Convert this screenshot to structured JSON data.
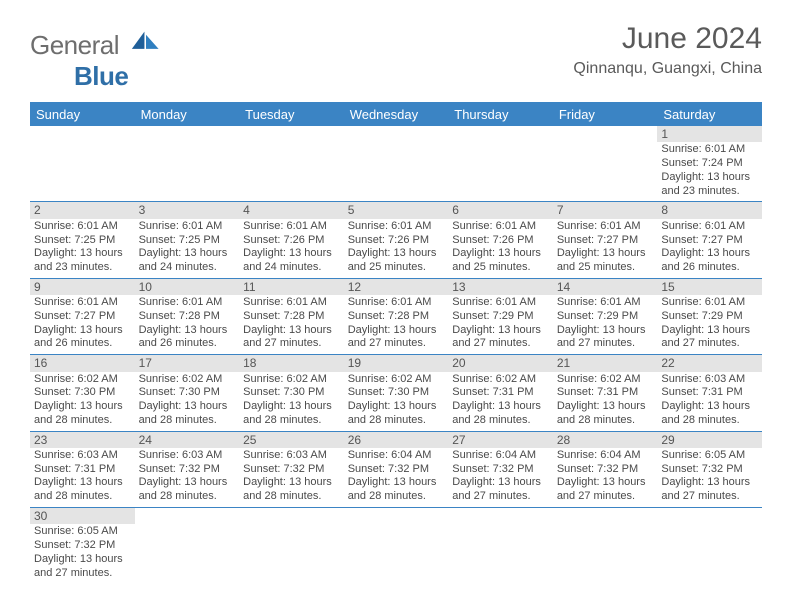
{
  "brand": {
    "word1": "General",
    "word2": "Blue"
  },
  "title": "June 2024",
  "location": "Qinnanqu, Guangxi, China",
  "colors": {
    "header_bg": "#3b84c4",
    "header_text": "#ffffff",
    "daynum_bg": "#e4e4e4",
    "border": "#3b84c4",
    "title_color": "#5a5a5a",
    "logo_gray": "#6e6e6e",
    "logo_blue": "#2f6fa7"
  },
  "weekdays": [
    "Sunday",
    "Monday",
    "Tuesday",
    "Wednesday",
    "Thursday",
    "Friday",
    "Saturday"
  ],
  "leading_blanks": 6,
  "days": [
    {
      "n": 1,
      "sr": "6:01 AM",
      "ss": "7:24 PM",
      "dl": "13 hours and 23 minutes."
    },
    {
      "n": 2,
      "sr": "6:01 AM",
      "ss": "7:25 PM",
      "dl": "13 hours and 23 minutes."
    },
    {
      "n": 3,
      "sr": "6:01 AM",
      "ss": "7:25 PM",
      "dl": "13 hours and 24 minutes."
    },
    {
      "n": 4,
      "sr": "6:01 AM",
      "ss": "7:26 PM",
      "dl": "13 hours and 24 minutes."
    },
    {
      "n": 5,
      "sr": "6:01 AM",
      "ss": "7:26 PM",
      "dl": "13 hours and 25 minutes."
    },
    {
      "n": 6,
      "sr": "6:01 AM",
      "ss": "7:26 PM",
      "dl": "13 hours and 25 minutes."
    },
    {
      "n": 7,
      "sr": "6:01 AM",
      "ss": "7:27 PM",
      "dl": "13 hours and 25 minutes."
    },
    {
      "n": 8,
      "sr": "6:01 AM",
      "ss": "7:27 PM",
      "dl": "13 hours and 26 minutes."
    },
    {
      "n": 9,
      "sr": "6:01 AM",
      "ss": "7:27 PM",
      "dl": "13 hours and 26 minutes."
    },
    {
      "n": 10,
      "sr": "6:01 AM",
      "ss": "7:28 PM",
      "dl": "13 hours and 26 minutes."
    },
    {
      "n": 11,
      "sr": "6:01 AM",
      "ss": "7:28 PM",
      "dl": "13 hours and 27 minutes."
    },
    {
      "n": 12,
      "sr": "6:01 AM",
      "ss": "7:28 PM",
      "dl": "13 hours and 27 minutes."
    },
    {
      "n": 13,
      "sr": "6:01 AM",
      "ss": "7:29 PM",
      "dl": "13 hours and 27 minutes."
    },
    {
      "n": 14,
      "sr": "6:01 AM",
      "ss": "7:29 PM",
      "dl": "13 hours and 27 minutes."
    },
    {
      "n": 15,
      "sr": "6:01 AM",
      "ss": "7:29 PM",
      "dl": "13 hours and 27 minutes."
    },
    {
      "n": 16,
      "sr": "6:02 AM",
      "ss": "7:30 PM",
      "dl": "13 hours and 28 minutes."
    },
    {
      "n": 17,
      "sr": "6:02 AM",
      "ss": "7:30 PM",
      "dl": "13 hours and 28 minutes."
    },
    {
      "n": 18,
      "sr": "6:02 AM",
      "ss": "7:30 PM",
      "dl": "13 hours and 28 minutes."
    },
    {
      "n": 19,
      "sr": "6:02 AM",
      "ss": "7:30 PM",
      "dl": "13 hours and 28 minutes."
    },
    {
      "n": 20,
      "sr": "6:02 AM",
      "ss": "7:31 PM",
      "dl": "13 hours and 28 minutes."
    },
    {
      "n": 21,
      "sr": "6:02 AM",
      "ss": "7:31 PM",
      "dl": "13 hours and 28 minutes."
    },
    {
      "n": 22,
      "sr": "6:03 AM",
      "ss": "7:31 PM",
      "dl": "13 hours and 28 minutes."
    },
    {
      "n": 23,
      "sr": "6:03 AM",
      "ss": "7:31 PM",
      "dl": "13 hours and 28 minutes."
    },
    {
      "n": 24,
      "sr": "6:03 AM",
      "ss": "7:32 PM",
      "dl": "13 hours and 28 minutes."
    },
    {
      "n": 25,
      "sr": "6:03 AM",
      "ss": "7:32 PM",
      "dl": "13 hours and 28 minutes."
    },
    {
      "n": 26,
      "sr": "6:04 AM",
      "ss": "7:32 PM",
      "dl": "13 hours and 28 minutes."
    },
    {
      "n": 27,
      "sr": "6:04 AM",
      "ss": "7:32 PM",
      "dl": "13 hours and 27 minutes."
    },
    {
      "n": 28,
      "sr": "6:04 AM",
      "ss": "7:32 PM",
      "dl": "13 hours and 27 minutes."
    },
    {
      "n": 29,
      "sr": "6:05 AM",
      "ss": "7:32 PM",
      "dl": "13 hours and 27 minutes."
    },
    {
      "n": 30,
      "sr": "6:05 AM",
      "ss": "7:32 PM",
      "dl": "13 hours and 27 minutes."
    }
  ],
  "labels": {
    "sunrise": "Sunrise:",
    "sunset": "Sunset:",
    "daylight": "Daylight:"
  }
}
